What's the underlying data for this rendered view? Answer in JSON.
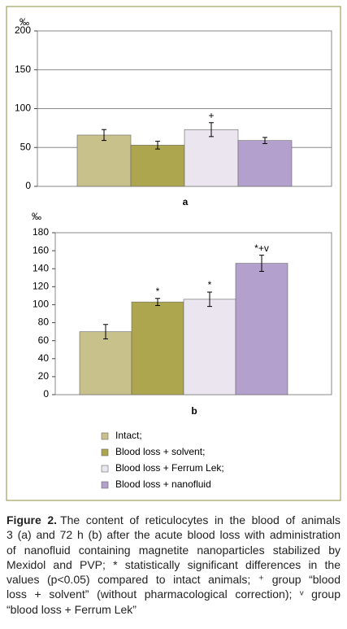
{
  "chart_data": [
    {
      "type": "bar",
      "label": "a",
      "ylabel": "‰",
      "values": [
        66,
        53,
        73,
        59
      ],
      "errors": [
        7,
        5,
        9,
        4
      ],
      "value_annotations": [
        null,
        null,
        "+",
        null
      ],
      "ylim": [
        0,
        200
      ],
      "yticks": [
        0,
        50,
        100,
        150,
        200
      ],
      "grid": true
    },
    {
      "type": "bar",
      "label": "b",
      "ylabel": "‰",
      "values": [
        70,
        103,
        106,
        146
      ],
      "errors": [
        8,
        4,
        8,
        9
      ],
      "value_annotations": [
        null,
        "*",
        "*",
        "*+v"
      ],
      "ylim": [
        0,
        180
      ],
      "yticks": [
        0,
        20,
        40,
        60,
        80,
        100,
        120,
        140,
        160,
        180
      ],
      "grid": false
    }
  ],
  "legend": [
    {
      "name": "Intact;",
      "color": "#c9c18b"
    },
    {
      "name": "Blood loss + solvent;",
      "color": "#ada64f"
    },
    {
      "name": "Blood loss + Ferrum Lek;",
      "color": "#ebe5f0"
    },
    {
      "name": "Blood loss + nanofluid",
      "color": "#b3a0cc"
    }
  ],
  "caption": {
    "label": "Figure 2.",
    "lines": [
      "The content of reticulocytes in the blood of animals",
      "3 (a) and 72 h (b) after the acute blood loss with administration",
      "of nanofluid containing magnetite nanoparticles stabilized by",
      "Mexidol and PVP; * statistically significant differences in the",
      "values (p<0.05) compared to intact animals; ⁺ group “blood",
      "loss + solvent” (without pharmacological correction); ᵛ group",
      "“blood loss + Ferrum Lek”"
    ]
  }
}
